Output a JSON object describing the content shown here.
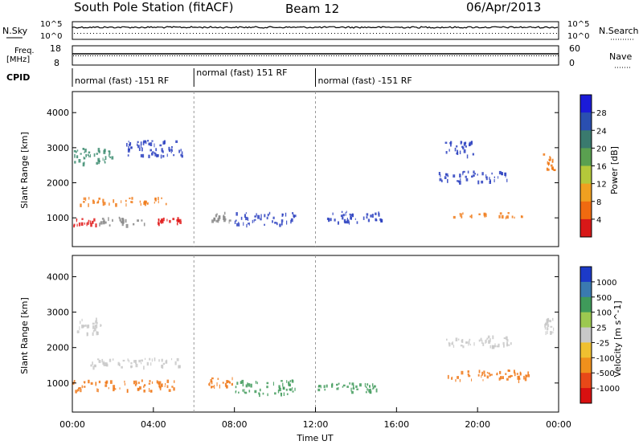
{
  "header": {
    "station": "South Pole Station (fitACF)",
    "beam": "Beam 12",
    "date": "06/Apr/2013"
  },
  "top_panels": {
    "nsky_label": "N.Sky",
    "nsky_ticks": [
      "10^5",
      "10^0"
    ],
    "nsearch_label": "N.Search",
    "nsearch_ticks": [
      "10^5",
      "10^0"
    ],
    "freq_label_1": "Freq.",
    "freq_label_2": "[MHz]",
    "freq_ticks": [
      "18",
      "8"
    ],
    "nave_label": "Nave",
    "nave_ticks": [
      "60",
      "0"
    ],
    "cpid_label": "CPID",
    "cpid_segments": [
      {
        "text": "normal (fast) -151 RF",
        "start_h": 0,
        "end_h": 6
      },
      {
        "text": "normal (fast) 151 RF",
        "start_h": 6,
        "end_h": 12
      },
      {
        "text": "normal (fast) -151 RF",
        "start_h": 12,
        "end_h": 24
      }
    ]
  },
  "chart_data": [
    {
      "type": "heatmap",
      "name": "power",
      "ylabel": "Slant Range [km]",
      "yticks": [
        1000,
        2000,
        3000,
        4000
      ],
      "ylim": [
        180,
        4600
      ],
      "xlim": [
        0,
        24
      ],
      "colorbar_label": "Power [dB]",
      "colorbar_ticks": [
        "4",
        "8",
        "12",
        "16",
        "20",
        "24",
        "28"
      ],
      "colorbar_colors": [
        "#1b1bd8",
        "#2a4fb0",
        "#3a7a6e",
        "#5aa050",
        "#b4c83a",
        "#f0a020",
        "#f06a10",
        "#d81818"
      ],
      "colors": {
        "weak": "#2a3fc0",
        "mid": "#3c8c70",
        "strong": "#f07a18",
        "peak": "#e01818"
      },
      "blobs": [
        {
          "t": 0.5,
          "r": 900,
          "dt": 1.3,
          "dr": 200,
          "lvl": 3
        },
        {
          "t": 2.5,
          "r": 920,
          "dt": 2.4,
          "dr": 230,
          "lvl": 4
        },
        {
          "t": 4.8,
          "r": 950,
          "dt": 1.2,
          "dr": 180,
          "lvl": 3
        },
        {
          "t": 7.3,
          "r": 1050,
          "dt": 0.9,
          "dr": 250,
          "lvl": 4
        },
        {
          "t": 2.5,
          "r": 1500,
          "dt": 4.5,
          "dr": 200,
          "lvl": 2
        },
        {
          "t": 1.0,
          "r": 2800,
          "dt": 2.0,
          "dr": 450,
          "lvl": 1
        },
        {
          "t": 4.0,
          "r": 3000,
          "dt": 3.0,
          "dr": 450,
          "lvl": 0
        },
        {
          "t": 9.5,
          "r": 1000,
          "dt": 3.0,
          "dr": 350,
          "lvl": 0
        },
        {
          "t": 14.0,
          "r": 1050,
          "dt": 3.0,
          "dr": 300,
          "lvl": 0
        },
        {
          "t": 20.5,
          "r": 1100,
          "dt": 3.5,
          "dr": 150,
          "lvl": 2
        },
        {
          "t": 19.8,
          "r": 2200,
          "dt": 3.5,
          "dr": 300,
          "lvl": 0
        },
        {
          "t": 23.5,
          "r": 2600,
          "dt": 0.6,
          "dr": 500,
          "lvl": 2
        },
        {
          "t": 19.0,
          "r": 3000,
          "dt": 1.5,
          "dr": 400,
          "lvl": 0
        }
      ]
    },
    {
      "type": "heatmap",
      "name": "velocity",
      "ylabel": "Slant Range [km]",
      "xlabel": "Time UT",
      "xticks": [
        "00:00",
        "04:00",
        "08:00",
        "12:00",
        "16:00",
        "20:00",
        "00:00"
      ],
      "yticks": [
        1000,
        2000,
        3000,
        4000
      ],
      "ylim": [
        180,
        4600
      ],
      "xlim": [
        0,
        24
      ],
      "colorbar_label": "Velocity [m s^-1]",
      "colorbar_ticks": [
        "1000",
        "500",
        "100",
        "25",
        "-25",
        "-100",
        "-500",
        "-1000"
      ],
      "colorbar_colors": [
        "#1c3ac8",
        "#3a7ab0",
        "#3f9a5a",
        "#9cc850",
        "#c8c8c8",
        "#f0c030",
        "#f0901c",
        "#e84818",
        "#d81010"
      ],
      "colors": {
        "neg": "#f07818",
        "ground": "#c8c8c8",
        "pos": "#3f9a5a",
        "strong_neg": "#e85018"
      },
      "blobs": [
        {
          "t": 2.5,
          "r": 950,
          "dt": 5.0,
          "dr": 300,
          "lvl": "neg"
        },
        {
          "t": 7.3,
          "r": 1050,
          "dt": 1.2,
          "dr": 280,
          "lvl": "neg"
        },
        {
          "t": 0.7,
          "r": 2650,
          "dt": 1.4,
          "dr": 450,
          "lvl": "ground"
        },
        {
          "t": 20.0,
          "r": 2200,
          "dt": 3.5,
          "dr": 300,
          "lvl": "ground"
        },
        {
          "t": 23.5,
          "r": 2650,
          "dt": 0.5,
          "dr": 400,
          "lvl": "ground"
        },
        {
          "t": 20.5,
          "r": 1250,
          "dt": 4.0,
          "dr": 300,
          "lvl": "neg"
        },
        {
          "t": 9.5,
          "r": 900,
          "dt": 3.0,
          "dr": 400,
          "lvl": "pos"
        },
        {
          "t": 13.5,
          "r": 900,
          "dt": 3.0,
          "dr": 300,
          "lvl": "pos"
        },
        {
          "t": 3.0,
          "r": 1600,
          "dt": 4.5,
          "dr": 250,
          "lvl": "ground"
        }
      ]
    }
  ]
}
